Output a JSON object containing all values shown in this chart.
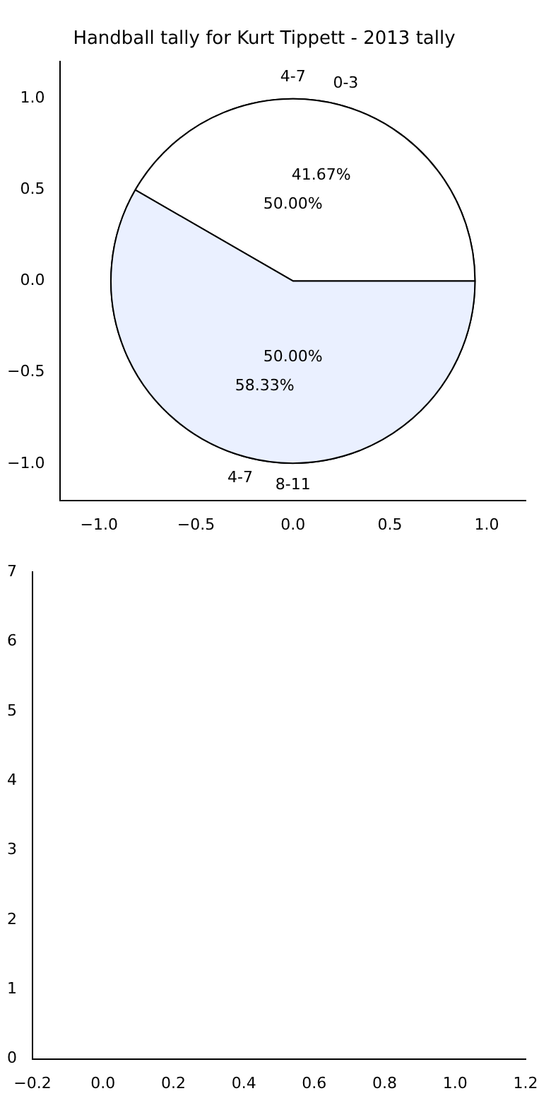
{
  "chart_data": [
    {
      "type": "scatter",
      "title": "Handball tally for Kurt Tippett - 2013 tally",
      "xlim": [
        -1.2,
        1.2
      ],
      "ylim": [
        -1.2,
        1.2
      ],
      "xticks": [
        {
          "value": -1,
          "label": "−1.0"
        },
        {
          "value": -0.5,
          "label": "−0.5"
        },
        {
          "value": 0,
          "label": "0.0"
        },
        {
          "value": 0.5,
          "label": "0.5"
        },
        {
          "value": 1,
          "label": "1.0"
        }
      ],
      "yticks": [
        {
          "value": -1,
          "label": "−1.0"
        },
        {
          "value": -0.5,
          "label": "−0.5"
        },
        {
          "value": 0,
          "label": "0.0"
        },
        {
          "value": 0.5,
          "label": "0.5"
        },
        {
          "value": 1,
          "label": "1.0"
        }
      ]
    },
    {
      "type": "pie",
      "categories": [
        "0-3",
        "4-7"
      ],
      "values": [
        41.67,
        58.33
      ],
      "colors": [
        "#ffffff",
        "#eaf0ff"
      ],
      "value_labels": [
        "41.67%",
        "58.33%"
      ]
    },
    {
      "type": "pie",
      "categories": [
        "4-7",
        "8-11"
      ],
      "values": [
        50,
        50
      ],
      "colors": [
        "#ffffff",
        "#eaf0ff"
      ],
      "value_labels": [
        "50.00%",
        "50.00%"
      ]
    },
    {
      "type": "scatter",
      "xlim": [
        -0.2,
        1.2
      ],
      "ylim": [
        0,
        7
      ],
      "xticks": [
        {
          "value": -0.2,
          "label": "−0.2"
        },
        {
          "value": 0,
          "label": "0.0"
        },
        {
          "value": 0.2,
          "label": "0.2"
        },
        {
          "value": 0.4,
          "label": "0.4"
        },
        {
          "value": 0.6,
          "label": "0.6"
        },
        {
          "value": 0.8,
          "label": "0.8"
        },
        {
          "value": 1,
          "label": "1.0"
        },
        {
          "value": 1.2,
          "label": "1.2"
        }
      ],
      "yticks": [
        0,
        1,
        2,
        3,
        4,
        5,
        6,
        7
      ]
    }
  ]
}
